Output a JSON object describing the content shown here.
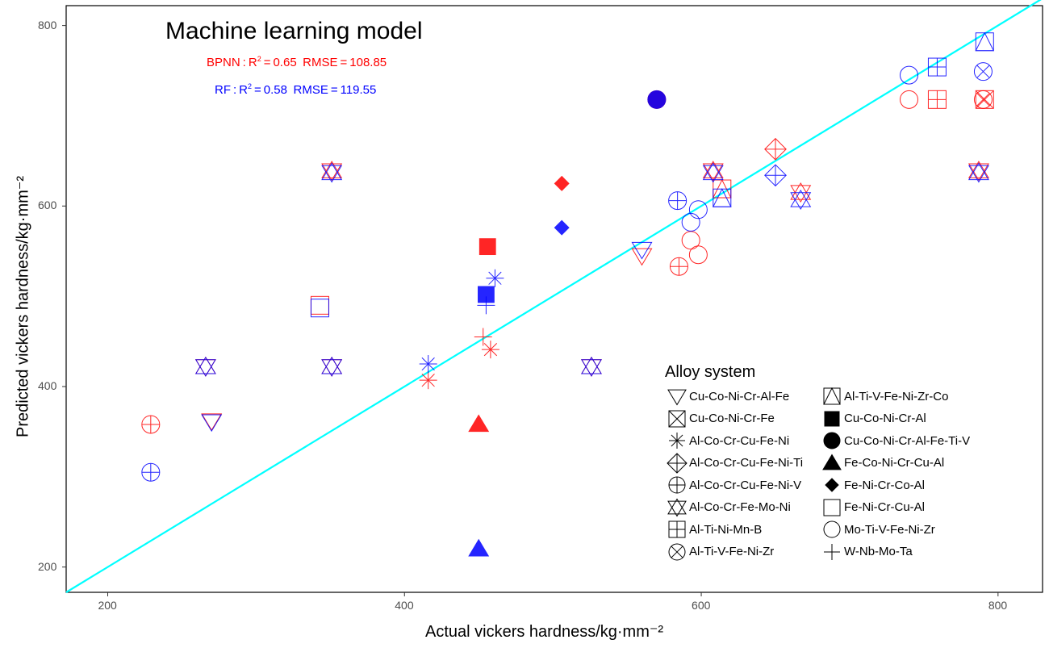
{
  "chart_data": {
    "type": "scatter",
    "title": "Machine learning model",
    "annotations": [
      {
        "model": "BPNN",
        "r2": 0.65,
        "rmse": 108.85,
        "color": "#ff0000"
      },
      {
        "model": "RF",
        "r2": 0.58,
        "rmse": 119.55,
        "color": "#0000ff"
      }
    ],
    "xlabel": "Actual vickers hardness/kg·mm⁻²",
    "ylabel": "Predicted vickers hardness/kg·mm⁻²",
    "xlim": [
      172,
      830
    ],
    "ylim": [
      172,
      822
    ],
    "xticks": [
      200,
      400,
      600,
      800
    ],
    "yticks": [
      200,
      400,
      600,
      800
    ],
    "grid": false,
    "legend_title": "Alloy system",
    "legend_position": "bottom-right",
    "colors": {
      "BPNN": "#ff0000",
      "RF": "#0000ff",
      "fit_line": "#00ffff"
    },
    "fit_line": {
      "from": [
        172,
        172
      ],
      "to": [
        830,
        830
      ]
    },
    "alloy_systems": [
      {
        "name": "Cu-Co-Ni-Cr-Al-Fe",
        "shape": "triangle-down"
      },
      {
        "name": "Cu-Co-Ni-Cr-Fe",
        "shape": "square-x"
      },
      {
        "name": "Al-Co-Cr-Cu-Fe-Ni",
        "shape": "asterisk"
      },
      {
        "name": "Al-Co-Cr-Cu-Fe-Ni-Ti",
        "shape": "diamond-plus"
      },
      {
        "name": "Al-Co-Cr-Cu-Fe-Ni-V",
        "shape": "circle-plus"
      },
      {
        "name": "Al-Co-Cr-Fe-Mo-Ni",
        "shape": "star-of-david"
      },
      {
        "name": "Al-Ti-Ni-Mn-B",
        "shape": "square-plus"
      },
      {
        "name": "Al-Ti-V-Fe-Ni-Zr",
        "shape": "circle-x"
      },
      {
        "name": "Al-Ti-V-Fe-Ni-Zr-Co",
        "shape": "triangle-square"
      },
      {
        "name": "Cu-Co-Ni-Cr-Al",
        "shape": "square-filled"
      },
      {
        "name": "Cu-Co-Ni-Cr-Al-Fe-Ti-V",
        "shape": "circle-filled"
      },
      {
        "name": "Fe-Co-Ni-Cr-Cu-Al",
        "shape": "triangle-filled"
      },
      {
        "name": "Fe-Ni-Cr-Co-Al",
        "shape": "diamond-filled"
      },
      {
        "name": "Fe-Ni-Cr-Cu-Al",
        "shape": "square-open"
      },
      {
        "name": "Mo-Ti-V-Fe-Ni-Zr",
        "shape": "circle-open"
      },
      {
        "name": "W-Nb-Mo-Ta",
        "shape": "plus"
      }
    ],
    "series": [
      {
        "name": "BPNN",
        "color": "#ff0000",
        "points": [
          {
            "x": 229,
            "y": 358,
            "system": "Al-Co-Cr-Cu-Fe-Ni-V"
          },
          {
            "x": 270,
            "y": 362,
            "system": "Cu-Co-Ni-Cr-Al-Fe"
          },
          {
            "x": 266,
            "y": 422,
            "system": "Al-Co-Cr-Fe-Mo-Ni"
          },
          {
            "x": 351,
            "y": 422,
            "system": "Al-Co-Cr-Fe-Mo-Ni"
          },
          {
            "x": 351,
            "y": 639,
            "system": "Al-Co-Cr-Fe-Mo-Ni"
          },
          {
            "x": 343,
            "y": 490,
            "system": "Fe-Ni-Cr-Cu-Al"
          },
          {
            "x": 416,
            "y": 407,
            "system": "Al-Co-Cr-Cu-Fe-Ni"
          },
          {
            "x": 458,
            "y": 441,
            "system": "Al-Co-Cr-Cu-Fe-Ni"
          },
          {
            "x": 453,
            "y": 455,
            "system": "W-Nb-Mo-Ta"
          },
          {
            "x": 450,
            "y": 358,
            "system": "Fe-Co-Ni-Cr-Cu-Al"
          },
          {
            "x": 456,
            "y": 555,
            "system": "Cu-Co-Ni-Cr-Al"
          },
          {
            "x": 506,
            "y": 625,
            "system": "Fe-Ni-Cr-Co-Al"
          },
          {
            "x": 526,
            "y": 422,
            "system": "Al-Co-Cr-Fe-Mo-Ni"
          },
          {
            "x": 560,
            "y": 545,
            "system": "Cu-Co-Ni-Cr-Al-Fe"
          },
          {
            "x": 570,
            "y": 718,
            "system": "Cu-Co-Ni-Cr-Al-Fe-Ti-V"
          },
          {
            "x": 585,
            "y": 533,
            "system": "Al-Co-Cr-Cu-Fe-Ni-V"
          },
          {
            "x": 593,
            "y": 562,
            "system": "Mo-Ti-V-Fe-Ni-Zr"
          },
          {
            "x": 598,
            "y": 546,
            "system": "Mo-Ti-V-Fe-Ni-Zr"
          },
          {
            "x": 608,
            "y": 639,
            "system": "Al-Co-Cr-Fe-Mo-Ni"
          },
          {
            "x": 614,
            "y": 619,
            "system": "Al-Ti-V-Fe-Ni-Zr-Co"
          },
          {
            "x": 650,
            "y": 663,
            "system": "Al-Co-Cr-Cu-Fe-Ni-Ti"
          },
          {
            "x": 667,
            "y": 615,
            "system": "Al-Co-Cr-Fe-Mo-Ni"
          },
          {
            "x": 740,
            "y": 718,
            "system": "Mo-Ti-V-Fe-Ni-Zr"
          },
          {
            "x": 759,
            "y": 718,
            "system": "Al-Ti-Ni-Mn-B"
          },
          {
            "x": 787,
            "y": 639,
            "system": "Al-Co-Cr-Fe-Mo-Ni"
          },
          {
            "x": 790,
            "y": 718,
            "system": "Al-Ti-V-Fe-Ni-Zr"
          },
          {
            "x": 791,
            "y": 718,
            "system": "Cu-Co-Ni-Cr-Fe"
          }
        ]
      },
      {
        "name": "RF",
        "color": "#0000ff",
        "points": [
          {
            "x": 229,
            "y": 305,
            "system": "Al-Co-Cr-Cu-Fe-Ni-V"
          },
          {
            "x": 270,
            "y": 361,
            "system": "Cu-Co-Ni-Cr-Al-Fe"
          },
          {
            "x": 266,
            "y": 422,
            "system": "Al-Co-Cr-Fe-Mo-Ni"
          },
          {
            "x": 351,
            "y": 422,
            "system": "Al-Co-Cr-Fe-Mo-Ni"
          },
          {
            "x": 351,
            "y": 637,
            "system": "Al-Co-Cr-Fe-Mo-Ni"
          },
          {
            "x": 343,
            "y": 487,
            "system": "Fe-Ni-Cr-Cu-Al"
          },
          {
            "x": 416,
            "y": 425,
            "system": "Al-Co-Cr-Cu-Fe-Ni"
          },
          {
            "x": 461,
            "y": 520,
            "system": "Al-Co-Cr-Cu-Fe-Ni"
          },
          {
            "x": 455,
            "y": 490,
            "system": "W-Nb-Mo-Ta"
          },
          {
            "x": 450,
            "y": 220,
            "system": "Fe-Co-Ni-Cr-Cu-Al"
          },
          {
            "x": 455,
            "y": 502,
            "system": "Cu-Co-Ni-Cr-Al"
          },
          {
            "x": 506,
            "y": 576,
            "system": "Fe-Ni-Cr-Co-Al"
          },
          {
            "x": 526,
            "y": 422,
            "system": "Al-Co-Cr-Fe-Mo-Ni"
          },
          {
            "x": 560,
            "y": 552,
            "system": "Cu-Co-Ni-Cr-Al-Fe"
          },
          {
            "x": 570,
            "y": 718,
            "system": "Cu-Co-Ni-Cr-Al-Fe-Ti-V"
          },
          {
            "x": 584,
            "y": 606,
            "system": "Al-Co-Cr-Cu-Fe-Ni-V"
          },
          {
            "x": 593,
            "y": 582,
            "system": "Mo-Ti-V-Fe-Ni-Zr"
          },
          {
            "x": 598,
            "y": 596,
            "system": "Mo-Ti-V-Fe-Ni-Zr"
          },
          {
            "x": 608,
            "y": 637,
            "system": "Al-Co-Cr-Fe-Mo-Ni"
          },
          {
            "x": 614,
            "y": 609,
            "system": "Al-Ti-V-Fe-Ni-Zr-Co"
          },
          {
            "x": 650,
            "y": 634,
            "system": "Al-Co-Cr-Cu-Fe-Ni-Ti"
          },
          {
            "x": 667,
            "y": 607,
            "system": "Al-Co-Cr-Fe-Mo-Ni"
          },
          {
            "x": 740,
            "y": 745,
            "system": "Mo-Ti-V-Fe-Ni-Zr"
          },
          {
            "x": 759,
            "y": 754,
            "system": "Al-Ti-Ni-Mn-B"
          },
          {
            "x": 787,
            "y": 637,
            "system": "Al-Co-Cr-Fe-Mo-Ni"
          },
          {
            "x": 790,
            "y": 749,
            "system": "Al-Ti-V-Fe-Ni-Zr"
          },
          {
            "x": 791,
            "y": 782,
            "system": "Al-Ti-V-Fe-Ni-Zr-Co"
          }
        ]
      }
    ]
  }
}
